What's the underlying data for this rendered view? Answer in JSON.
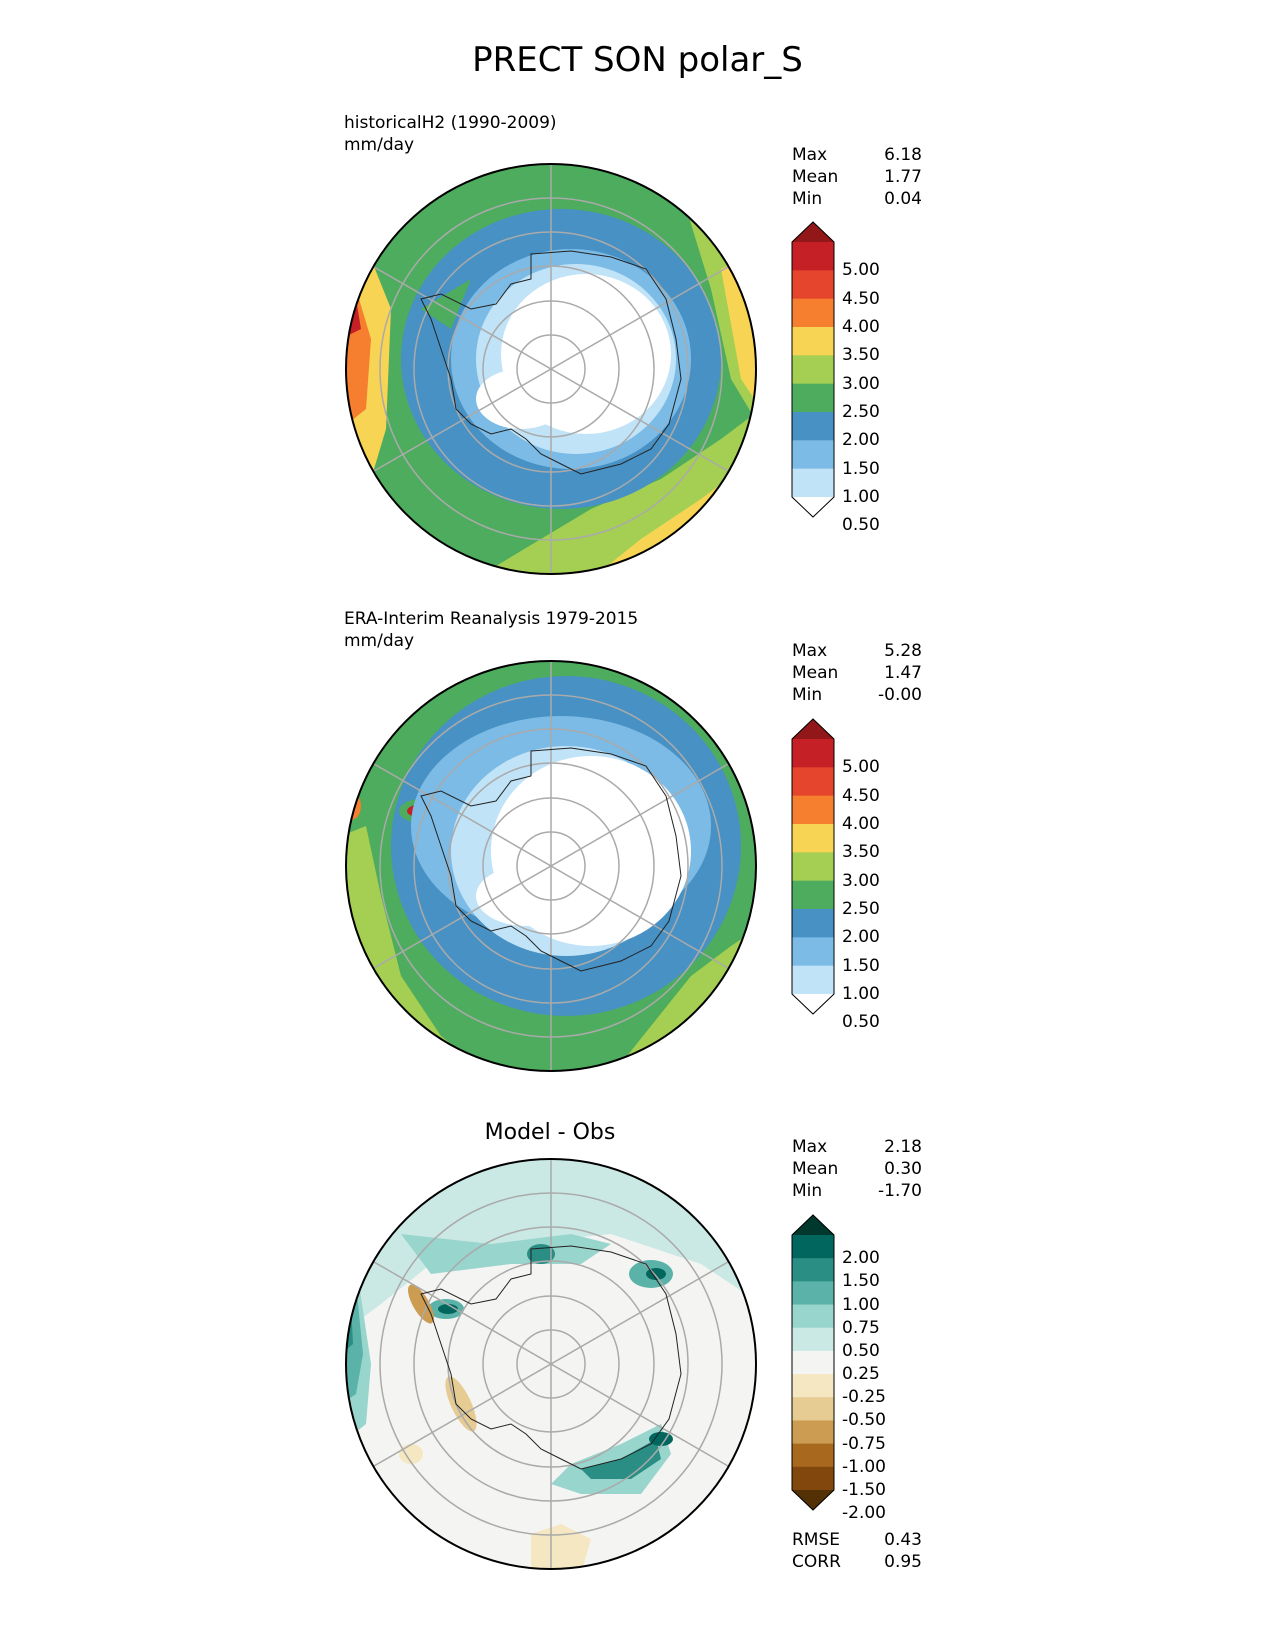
{
  "title": "PRECT SON polar_S",
  "panels": [
    {
      "id": "model",
      "label_line1": "historicalH2 (1990-2009)",
      "label_line2": "mm/day",
      "stats": [
        {
          "name": "Max",
          "value": "6.18"
        },
        {
          "name": "Mean",
          "value": "1.77"
        },
        {
          "name": "Min",
          "value": "0.04"
        }
      ],
      "colorbar": {
        "ticks": [
          "5.00",
          "4.50",
          "4.00",
          "3.50",
          "3.00",
          "2.50",
          "2.00",
          "1.50",
          "1.00",
          "0.50"
        ],
        "colors": [
          "#911719",
          "#c42026",
          "#e5452d",
          "#f67e2f",
          "#f8d454",
          "#a4cf52",
          "#4eac5e",
          "#4791c4",
          "#7bbbe6",
          "#c0e3f7",
          "#ffffff"
        ]
      }
    },
    {
      "id": "obs",
      "label_line1": "ERA-Interim Reanalysis 1979-2015",
      "label_line2": "mm/day",
      "stats": [
        {
          "name": "Max",
          "value": "5.28"
        },
        {
          "name": "Mean",
          "value": "1.47"
        },
        {
          "name": "Min",
          "value": "-0.00"
        }
      ],
      "colorbar": {
        "ticks": [
          "5.00",
          "4.50",
          "4.00",
          "3.50",
          "3.00",
          "2.50",
          "2.00",
          "1.50",
          "1.00",
          "0.50"
        ],
        "colors": [
          "#911719",
          "#c42026",
          "#e5452d",
          "#f67e2f",
          "#f8d454",
          "#a4cf52",
          "#4eac5e",
          "#4791c4",
          "#7bbbe6",
          "#c0e3f7",
          "#ffffff"
        ]
      }
    },
    {
      "id": "diff",
      "title": "Model - Obs",
      "stats": [
        {
          "name": "Max",
          "value": "2.18"
        },
        {
          "name": "Mean",
          "value": "0.30"
        },
        {
          "name": "Min",
          "value": "-1.70"
        }
      ],
      "metrics": [
        {
          "name": "RMSE",
          "value": "0.43"
        },
        {
          "name": "CORR",
          "value": "0.95"
        }
      ],
      "colorbar": {
        "ticks": [
          "2.00",
          "1.50",
          "1.00",
          "0.75",
          "0.50",
          "0.25",
          "-0.25",
          "-0.50",
          "-0.75",
          "-1.00",
          "-1.50",
          "-2.00"
        ],
        "colors": [
          "#00382d",
          "#01665e",
          "#2a8e84",
          "#5ab2a8",
          "#98d5cc",
          "#cbe9e4",
          "#f4f4f2",
          "#f6e7c3",
          "#e6cb92",
          "#cc9c53",
          "#a8681e",
          "#82470d",
          "#543005"
        ]
      }
    }
  ],
  "palette": {
    "precip": [
      "#ffffff",
      "#c0e3f7",
      "#7bbbe6",
      "#4791c4",
      "#4eac5e",
      "#a4cf52",
      "#f8d454",
      "#f67e2f",
      "#e5452d",
      "#c42026",
      "#911719"
    ],
    "diff": [
      "#f4f4f2",
      "#cbe9e4",
      "#98d5cc",
      "#5ab2a8",
      "#2a8e84",
      "#01665e",
      "#f6e7c3",
      "#e6cb92",
      "#cc9c53"
    ]
  }
}
